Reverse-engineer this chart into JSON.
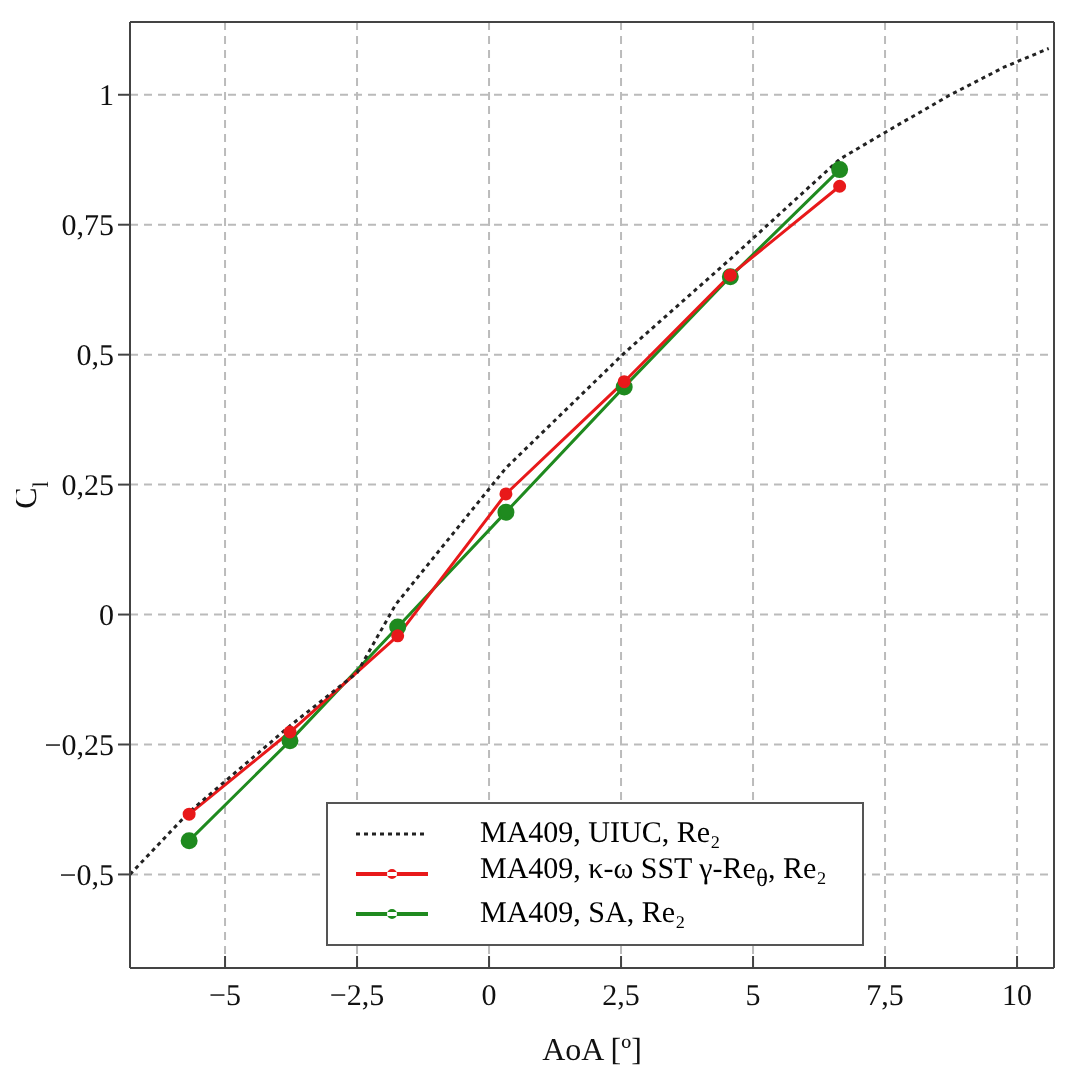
{
  "chart_data": {
    "type": "line",
    "xlabel": "AoA [º]",
    "ylabel": "C$_{l}$",
    "xlim": [
      -6.8,
      10.7
    ],
    "ylim": [
      -0.68,
      1.14
    ],
    "xticks": [
      {
        "value": -5,
        "label": "−5"
      },
      {
        "value": -2.5,
        "label": "−2,5"
      },
      0,
      {
        "value": 2.5,
        "label": "2,5"
      },
      5,
      {
        "value": 7.5,
        "label": "7,5"
      },
      10
    ],
    "yticks": [
      {
        "value": -0.5,
        "label": "−0,5"
      },
      {
        "value": -0.25,
        "label": "−0,25"
      },
      0,
      {
        "value": 0.25,
        "label": "0,25"
      },
      {
        "value": 0.5,
        "label": "0,5"
      },
      {
        "value": 0.75,
        "label": "0,75"
      },
      1
    ],
    "grid": true,
    "legend": "bottom",
    "series": [
      {
        "name": "MA409, UIUC, Re₂",
        "color": "#222222",
        "marker": "none",
        "line_style": "dotted",
        "x": [
          -6.8,
          -5.68,
          -3.77,
          -2.5,
          -1.77,
          0.32,
          2.56,
          4.57,
          6.64,
          7.66,
          8.72,
          9.75,
          10.6
        ],
        "values": [
          -0.5,
          -0.38,
          -0.214,
          -0.112,
          0.019,
          0.282,
          0.503,
          0.684,
          0.876,
          0.937,
          0.999,
          1.053,
          1.089
        ]
      },
      {
        "name": "MA409, κ-ω SST γ-Re$_{θ}$, Re₂",
        "color": "#e8191a",
        "marker": "circle",
        "line_style": "solid",
        "x": [
          -5.68,
          -3.77,
          -1.73,
          0.32,
          2.56,
          4.57,
          6.64
        ],
        "values": [
          -0.384,
          -0.226,
          -0.041,
          0.232,
          0.448,
          0.653,
          0.824
        ]
      },
      {
        "name": "MA409, SA, Re₂",
        "color": "#1f8a1f",
        "marker": "circle",
        "line_style": "solid",
        "x": [
          -5.68,
          -3.77,
          -1.73,
          0.32,
          2.56,
          4.57,
          6.64
        ],
        "values": [
          -0.435,
          -0.243,
          -0.024,
          0.197,
          0.438,
          0.65,
          0.856
        ]
      }
    ]
  }
}
